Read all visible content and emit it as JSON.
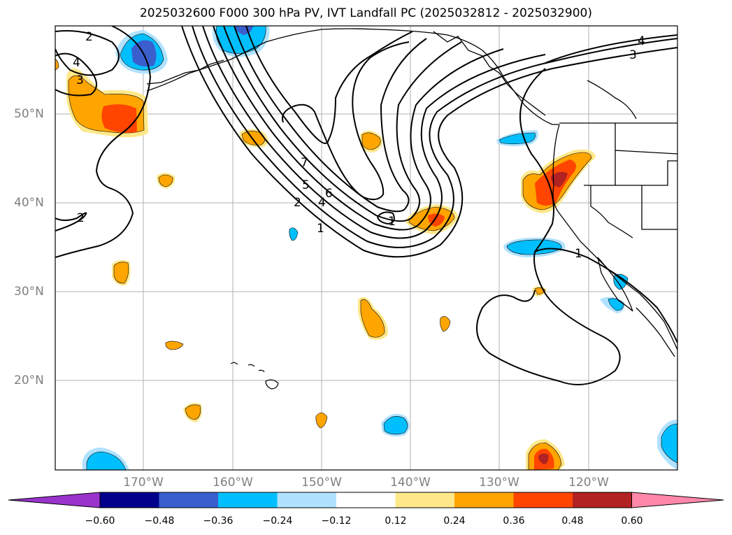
{
  "title": "2025032600 F000 300 hPa PV, IVT Landfall PC (2025032812 - 2025032900)",
  "latitude_labels": [
    "50°N",
    "40°N",
    "30°N",
    "20°N"
  ],
  "longitude_labels": [
    "170°W",
    "160°W",
    "150°W",
    "140°W",
    "130°W",
    "120°W"
  ],
  "pv_contour_labels": [
    "2",
    "4",
    "3",
    "2",
    "7",
    "5",
    "6",
    "2",
    "4",
    "1",
    "1",
    "1",
    "4",
    "3"
  ],
  "colorbar": {
    "tick_labels": [
      "−0.60",
      "−0.48",
      "−0.36",
      "−0.24",
      "−0.12",
      "0.12",
      "0.24",
      "0.36",
      "0.48",
      "0.60"
    ],
    "colors": [
      "#9933cc",
      "#00008b",
      "#3a5fcd",
      "#00bfff",
      "#b0e2ff",
      "#ffffff",
      "#ffe88a",
      "#ffa500",
      "#ff4500",
      "#b22222",
      "#ff88aa"
    ]
  }
}
